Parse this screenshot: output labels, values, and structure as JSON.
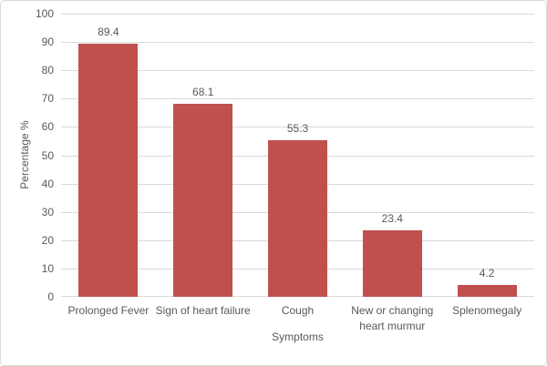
{
  "chart_data": {
    "type": "bar",
    "title": "",
    "categories": [
      "Prolonged Fever",
      "Sign of heart failure",
      "Cough",
      "New or changing heart murmur",
      "Splenomegaly"
    ],
    "values": [
      89.4,
      68.1,
      55.3,
      23.4,
      4.2
    ],
    "value_labels": [
      "89.4",
      "68.1",
      "55.3",
      "23.4",
      "4.2"
    ],
    "xlabel": "Symptoms",
    "ylabel": "Percentage %",
    "ylim": [
      0,
      100
    ],
    "ytick_step": 10,
    "ytick_labels": [
      "0",
      "10",
      "20",
      "30",
      "40",
      "50",
      "60",
      "70",
      "80",
      "90",
      "100"
    ],
    "grid": true,
    "legend": false,
    "colors": {
      "bar": "#C0504D",
      "text": "#595959",
      "gridline": "#D9D9D9",
      "axis_line": "#D9D9D9",
      "frame_border": "#D9D9D9",
      "background": "#FFFFFF"
    }
  }
}
